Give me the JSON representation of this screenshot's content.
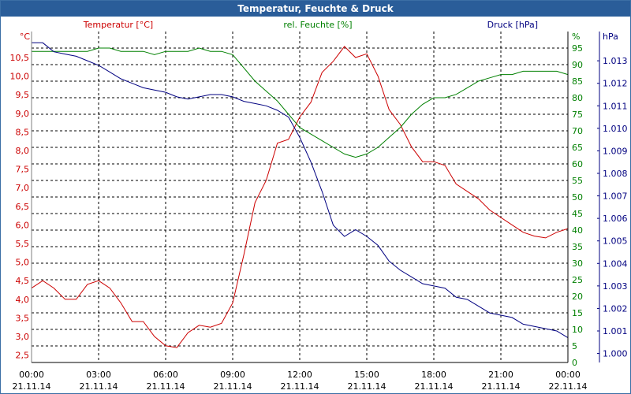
{
  "chart_data": {
    "type": "line",
    "title": "Temperatur, Feuchte & Druck",
    "x_ticks": [
      {
        "time": "00:00",
        "date": "21.11.14"
      },
      {
        "time": "03:00",
        "date": "21.11.14"
      },
      {
        "time": "06:00",
        "date": "21.11.14"
      },
      {
        "time": "09:00",
        "date": "21.11.14"
      },
      {
        "time": "12:00",
        "date": "21.11.14"
      },
      {
        "time": "15:00",
        "date": "21.11.14"
      },
      {
        "time": "18:00",
        "date": "21.11.14"
      },
      {
        "time": "21:00",
        "date": "21.11.14"
      },
      {
        "time": "00:00",
        "date": "22.11.14"
      }
    ],
    "xlim_hours": [
      0,
      24
    ],
    "grid": true,
    "axes": {
      "temperature": {
        "label": "Temperatur [°C]",
        "unit": "°C",
        "color": "#cc0000",
        "ylim": [
          2.3,
          11.2
        ],
        "ticks": [
          "2,5",
          "3,0",
          "3,5",
          "4,0",
          "4,5",
          "5,0",
          "5,5",
          "6,0",
          "6,5",
          "7,0",
          "7,5",
          "8,0",
          "8,5",
          "9,0",
          "9,5",
          "10,0",
          "10,5"
        ]
      },
      "humidity": {
        "label": "rel. Feuchte [%]",
        "unit": "%",
        "color": "#008000",
        "ylim": [
          0,
          100
        ],
        "ticks": [
          "0",
          "5",
          "10",
          "15",
          "20",
          "25",
          "30",
          "35",
          "40",
          "45",
          "50",
          "55",
          "60",
          "65",
          "70",
          "75",
          "80",
          "85",
          "90",
          "95"
        ]
      },
      "pressure": {
        "label": "Druck [hPa]",
        "unit": "hPa",
        "color": "#000080",
        "ylim": [
          0.9996,
          1.0143
        ],
        "ticks": [
          "1.000",
          "1.001",
          "1.002",
          "1.003",
          "1.004",
          "1.005",
          "1.006",
          "1.007",
          "1.008",
          "1.009",
          "1.010",
          "1.011",
          "1.012",
          "1.013"
        ]
      }
    },
    "series": [
      {
        "name": "Temperatur [°C]",
        "axis": "temperature",
        "color": "#cc0000",
        "x": [
          0,
          0.5,
          1,
          1.5,
          2,
          2.5,
          3,
          3.5,
          4,
          4.5,
          5,
          5.5,
          6,
          6.5,
          7,
          7.5,
          8,
          8.5,
          9,
          9.5,
          10,
          10.5,
          11,
          11.5,
          12,
          12.5,
          13,
          13.5,
          14,
          14.5,
          15,
          15.5,
          16,
          16.5,
          17,
          17.5,
          18,
          18.5,
          19,
          19.5,
          20,
          20.5,
          21,
          21.5,
          22,
          22.5,
          23,
          23.5,
          24
        ],
        "y": [
          4.3,
          4.5,
          4.3,
          4.0,
          4.0,
          4.4,
          4.5,
          4.3,
          3.9,
          3.4,
          3.4,
          3.0,
          2.75,
          2.7,
          3.1,
          3.3,
          3.25,
          3.35,
          3.9,
          5.2,
          6.6,
          7.2,
          8.2,
          8.3,
          8.9,
          9.3,
          10.1,
          10.4,
          10.8,
          10.5,
          10.6,
          10.0,
          9.1,
          8.7,
          8.1,
          7.7,
          7.7,
          7.6,
          7.1,
          6.9,
          6.7,
          6.4,
          6.2,
          6.0,
          5.8,
          5.7,
          5.65,
          5.8,
          5.9
        ]
      },
      {
        "name": "rel. Feuchte [%]",
        "axis": "humidity",
        "color": "#008000",
        "x": [
          0,
          0.5,
          1,
          1.5,
          2,
          2.5,
          3,
          3.5,
          4,
          4.5,
          5,
          5.5,
          6,
          6.5,
          7,
          7.5,
          8,
          8.5,
          9,
          9.5,
          10,
          10.5,
          11,
          11.5,
          12,
          12.5,
          13,
          13.5,
          14,
          14.5,
          15,
          15.5,
          16,
          16.5,
          17,
          17.5,
          18,
          18.5,
          19,
          19.5,
          20,
          20.5,
          21,
          21.5,
          22,
          22.5,
          23,
          23.5,
          24
        ],
        "y": [
          94,
          94,
          94,
          94,
          94,
          94,
          95,
          95,
          94,
          94,
          94,
          93,
          94,
          94,
          94,
          95,
          94,
          94,
          93,
          89,
          85,
          82,
          79,
          75,
          71,
          69,
          67,
          65,
          63,
          62,
          63,
          65,
          68,
          71,
          75,
          78,
          80,
          80,
          81,
          83,
          85,
          86,
          87,
          87,
          88,
          88,
          88,
          88,
          87
        ]
      },
      {
        "name": "Druck [hPa]",
        "axis": "pressure",
        "color": "#000080",
        "x": [
          0,
          0.5,
          1,
          1.5,
          2,
          2.5,
          3,
          3.5,
          4,
          4.5,
          5,
          5.5,
          6,
          6.5,
          7,
          7.5,
          8,
          8.5,
          9,
          9.5,
          10,
          10.5,
          11,
          11.5,
          12,
          12.5,
          13,
          13.5,
          14,
          14.5,
          15,
          15.5,
          16,
          16.5,
          17,
          17.5,
          18,
          18.5,
          19,
          19.5,
          20,
          20.5,
          21,
          21.5,
          22,
          22.5,
          23,
          23.5,
          24
        ],
        "y": [
          1.0138,
          1.0138,
          1.0134,
          1.0133,
          1.0132,
          1.013,
          1.0128,
          1.0125,
          1.0122,
          1.012,
          1.0118,
          1.0117,
          1.0116,
          1.0114,
          1.0113,
          1.0114,
          1.0115,
          1.0115,
          1.0114,
          1.0112,
          1.0111,
          1.011,
          1.0108,
          1.0105,
          1.0096,
          1.0085,
          1.0072,
          1.0057,
          1.0052,
          1.0055,
          1.0052,
          1.0048,
          1.0041,
          1.0037,
          1.0034,
          1.0031,
          1.003,
          1.0029,
          1.0025,
          1.0024,
          1.0021,
          1.0018,
          1.0017,
          1.0016,
          1.0013,
          1.0012,
          1.0011,
          1.001,
          1.0007
        ]
      }
    ]
  }
}
